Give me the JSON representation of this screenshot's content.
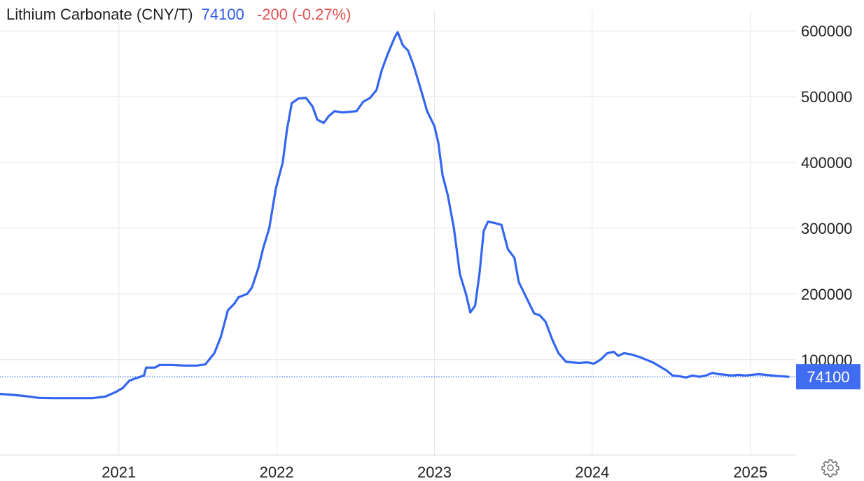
{
  "header": {
    "name": "Lithium Carbonate (CNY/T)",
    "last": "74100",
    "change": "-200 (-0.27%)"
  },
  "colors": {
    "line": "#3366ee",
    "last_label_bg": "#3f6cf0",
    "change_negative": "#e05050",
    "grid": "#e6e6e6"
  },
  "icons": {
    "settings": "gear-icon"
  },
  "chart_data": {
    "type": "line",
    "title": "Lithium Carbonate (CNY/T)",
    "ylim": [
      -45000,
      615000
    ],
    "y_ticks": [
      100000,
      200000,
      300000,
      400000,
      500000,
      600000
    ],
    "y_tick_labels": [
      "100000",
      "200000",
      "300000",
      "400000",
      "500000",
      "600000"
    ],
    "x_ticks": [
      "2021-01-01",
      "2022-01-01",
      "2023-01-01",
      "2024-01-01",
      "2025-01-01"
    ],
    "x_tick_labels": [
      "2021",
      "2022",
      "2023",
      "2024",
      "2025"
    ],
    "xlim": [
      "2020-04-01",
      "2025-04-15"
    ],
    "grid": true,
    "y_axis_position": "right",
    "last_value": 74100,
    "last_value_label": "74100",
    "series": [
      {
        "points": [
          [
            "2020-04-01",
            48000
          ],
          [
            "2020-05-01",
            46500
          ],
          [
            "2020-06-01",
            44500
          ],
          [
            "2020-07-01",
            42000
          ],
          [
            "2020-08-01",
            41500
          ],
          [
            "2020-09-01",
            41500
          ],
          [
            "2020-10-01",
            41500
          ],
          [
            "2020-11-01",
            41500
          ],
          [
            "2020-12-01",
            44000
          ],
          [
            "2020-12-25",
            51000
          ],
          [
            "2021-01-10",
            57000
          ],
          [
            "2021-01-25",
            68000
          ],
          [
            "2021-02-10",
            72000
          ],
          [
            "2021-02-28",
            76000
          ],
          [
            "2021-03-05",
            88000
          ],
          [
            "2021-03-25",
            88000
          ],
          [
            "2021-04-05",
            92000
          ],
          [
            "2021-05-01",
            92000
          ],
          [
            "2021-06-01",
            91000
          ],
          [
            "2021-07-01",
            91000
          ],
          [
            "2021-07-20",
            93000
          ],
          [
            "2021-08-10",
            110000
          ],
          [
            "2021-08-25",
            135000
          ],
          [
            "2021-09-10",
            175000
          ],
          [
            "2021-09-25",
            185000
          ],
          [
            "2021-10-05",
            195000
          ],
          [
            "2021-10-25",
            200000
          ],
          [
            "2021-11-05",
            210000
          ],
          [
            "2021-11-20",
            240000
          ],
          [
            "2021-12-01",
            270000
          ],
          [
            "2021-12-15",
            300000
          ],
          [
            "2021-12-30",
            360000
          ],
          [
            "2022-01-15",
            400000
          ],
          [
            "2022-01-25",
            450000
          ],
          [
            "2022-02-05",
            490000
          ],
          [
            "2022-02-20",
            497000
          ],
          [
            "2022-03-10",
            498000
          ],
          [
            "2022-03-25",
            485000
          ],
          [
            "2022-04-05",
            465000
          ],
          [
            "2022-04-20",
            460000
          ],
          [
            "2022-05-01",
            470000
          ],
          [
            "2022-05-15",
            478000
          ],
          [
            "2022-06-01",
            476000
          ],
          [
            "2022-06-20",
            477000
          ],
          [
            "2022-07-05",
            478000
          ],
          [
            "2022-07-20",
            492000
          ],
          [
            "2022-08-05",
            498000
          ],
          [
            "2022-08-20",
            510000
          ],
          [
            "2022-09-01",
            540000
          ],
          [
            "2022-09-15",
            565000
          ],
          [
            "2022-10-01",
            590000
          ],
          [
            "2022-10-08",
            598000
          ],
          [
            "2022-10-20",
            578000
          ],
          [
            "2022-11-01",
            570000
          ],
          [
            "2022-11-15",
            545000
          ],
          [
            "2022-12-01",
            510000
          ],
          [
            "2022-12-15",
            478000
          ],
          [
            "2023-01-01",
            455000
          ],
          [
            "2023-01-10",
            430000
          ],
          [
            "2023-01-20",
            380000
          ],
          [
            "2023-02-01",
            350000
          ],
          [
            "2023-02-15",
            300000
          ],
          [
            "2023-03-01",
            230000
          ],
          [
            "2023-03-15",
            200000
          ],
          [
            "2023-03-25",
            172000
          ],
          [
            "2023-04-05",
            182000
          ],
          [
            "2023-04-15",
            230000
          ],
          [
            "2023-04-25",
            296000
          ],
          [
            "2023-05-05",
            310000
          ],
          [
            "2023-05-20",
            308000
          ],
          [
            "2023-06-05",
            305000
          ],
          [
            "2023-06-20",
            268000
          ],
          [
            "2023-07-05",
            255000
          ],
          [
            "2023-07-15",
            218000
          ],
          [
            "2023-07-25",
            205000
          ],
          [
            "2023-08-05",
            190000
          ],
          [
            "2023-08-20",
            170000
          ],
          [
            "2023-09-01",
            168000
          ],
          [
            "2023-09-15",
            158000
          ],
          [
            "2023-10-01",
            130000
          ],
          [
            "2023-10-15",
            110000
          ],
          [
            "2023-11-01",
            97000
          ],
          [
            "2023-11-15",
            96000
          ],
          [
            "2023-12-01",
            95000
          ],
          [
            "2023-12-20",
            96000
          ],
          [
            "2024-01-05",
            94000
          ],
          [
            "2024-01-20",
            100000
          ],
          [
            "2024-02-05",
            110000
          ],
          [
            "2024-02-20",
            112000
          ],
          [
            "2024-03-01",
            106000
          ],
          [
            "2024-03-15",
            110000
          ],
          [
            "2024-04-01",
            108000
          ],
          [
            "2024-04-20",
            104000
          ],
          [
            "2024-05-05",
            100000
          ],
          [
            "2024-05-20",
            96000
          ],
          [
            "2024-06-05",
            90000
          ],
          [
            "2024-06-20",
            84000
          ],
          [
            "2024-07-05",
            76000
          ],
          [
            "2024-07-20",
            75000
          ],
          [
            "2024-08-05",
            73000
          ],
          [
            "2024-08-20",
            76000
          ],
          [
            "2024-09-05",
            74000
          ],
          [
            "2024-09-20",
            76000
          ],
          [
            "2024-10-05",
            80000
          ],
          [
            "2024-10-20",
            78000
          ],
          [
            "2024-11-05",
            77000
          ],
          [
            "2024-11-20",
            76000
          ],
          [
            "2024-12-05",
            77000
          ],
          [
            "2024-12-20",
            76000
          ],
          [
            "2025-01-05",
            77000
          ],
          [
            "2025-01-20",
            78000
          ],
          [
            "2025-02-05",
            77000
          ],
          [
            "2025-02-20",
            76000
          ],
          [
            "2025-03-10",
            75000
          ],
          [
            "2025-03-30",
            74100
          ]
        ]
      }
    ]
  }
}
